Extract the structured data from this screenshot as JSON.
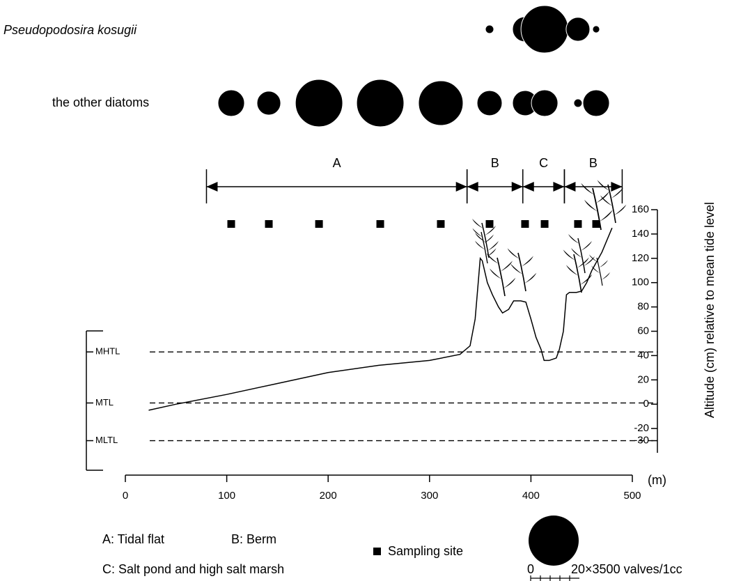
{
  "chart_data": {
    "type": "bubble-profile",
    "rows": [
      {
        "name": "Pseudopodosira kosugii",
        "values": [
          0,
          0,
          0,
          0,
          0,
          0.56,
          5,
          17.8,
          4.5,
          0.4
        ]
      },
      {
        "name": "the other diatoms",
        "values": [
          5.6,
          4.5,
          17.8,
          17.8,
          15.8,
          5,
          5,
          5.6,
          0.56,
          5.6
        ]
      }
    ],
    "sampling_sites": {
      "label": "Sampling site",
      "x": [
        104.4,
        141.5,
        191,
        251.4,
        311.1,
        359.2,
        394.2,
        413.5,
        446.4,
        464.3
      ]
    },
    "size_legend": {
      "value": 20,
      "min_label": "0",
      "label": "20×3500 valves/1cc"
    },
    "zones": [
      {
        "label": "A",
        "start": 80,
        "end": 337
      },
      {
        "label": "B",
        "start": 337,
        "end": 392
      },
      {
        "label": "C",
        "start": 392,
        "end": 433
      },
      {
        "label": "B",
        "start": 433,
        "end": 490
      }
    ],
    "zone_notes": [
      "A: Tidal flat",
      "B: Berm",
      "C: Salt pond and high salt marsh"
    ],
    "profile": {
      "x": [
        23,
        50,
        100,
        150,
        200,
        250,
        300,
        330,
        340,
        345,
        348,
        350,
        352,
        357,
        362,
        368,
        372,
        378,
        383,
        390,
        395,
        400,
        405,
        410,
        413,
        418,
        425,
        428,
        432,
        435,
        438,
        445,
        450,
        455,
        460,
        470,
        480
      ],
      "y": [
        -5,
        0,
        8,
        17,
        26,
        32,
        36,
        41,
        48,
        70,
        100,
        120,
        118,
        100,
        90,
        80,
        75,
        78,
        85,
        85,
        84,
        70,
        55,
        45,
        36,
        36,
        38,
        45,
        60,
        90,
        92,
        92,
        93,
        100,
        110,
        125,
        145
      ]
    },
    "tide_levels": [
      {
        "name": "MHTL",
        "value": 43
      },
      {
        "name": "MTL",
        "value": 1
      },
      {
        "name": "MLTL",
        "value": -30
      }
    ],
    "xlabel": "(m)",
    "xlim": [
      0,
      500
    ],
    "xticks": [
      0,
      100,
      200,
      300,
      400,
      500
    ],
    "ylabel": "Altitude (cm) relative to mean tide level",
    "ylim": [
      -40,
      160
    ],
    "yticks": [
      160,
      140,
      120,
      100,
      80,
      60,
      40,
      20,
      0,
      -20,
      -30
    ],
    "color": "#000000"
  }
}
